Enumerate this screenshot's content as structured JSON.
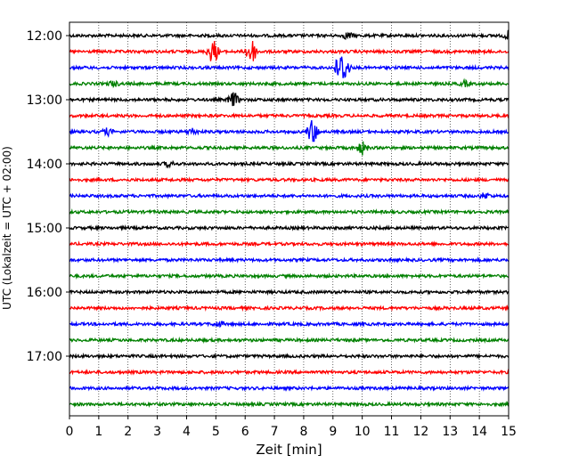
{
  "chart_data": {
    "type": "line",
    "title": "",
    "xlabel": "Zeit  [min]",
    "ylabel": "UTC (Lokalzeit = UTC + 02:00)",
    "xlim": [
      0,
      15
    ],
    "x_ticks": [
      "0",
      "1",
      "2",
      "3",
      "4",
      "5",
      "6",
      "7",
      "8",
      "9",
      "10",
      "11",
      "12",
      "13",
      "14",
      "15"
    ],
    "y_tick_labels": [
      "12:00",
      "13:00",
      "14:00",
      "15:00",
      "16:00",
      "17:00"
    ],
    "grid": "vertical dotted at each minute",
    "row_minutes": 15,
    "trace_colors": [
      "#000000",
      "#ff0000",
      "#0000ff",
      "#008000"
    ],
    "series": [
      {
        "start": "12:00",
        "color": "#000000",
        "events": [
          {
            "x": 9.5,
            "amp": 0.4
          },
          {
            "x": 15.0,
            "amp": 0.5
          }
        ]
      },
      {
        "start": "12:15",
        "color": "#ff0000",
        "events": [
          {
            "x": 4.9,
            "amp": 1.6
          },
          {
            "x": 6.2,
            "amp": 1.8
          }
        ]
      },
      {
        "start": "12:30",
        "color": "#0000ff",
        "events": [
          {
            "x": 9.2,
            "amp": 1.4
          },
          {
            "x": 9.4,
            "amp": 1.5
          }
        ]
      },
      {
        "start": "12:45",
        "color": "#008000",
        "events": [
          {
            "x": 1.5,
            "amp": 0.3
          },
          {
            "x": 13.5,
            "amp": 0.3
          }
        ]
      },
      {
        "start": "13:00",
        "color": "#000000",
        "events": [
          {
            "x": 5.6,
            "amp": 0.9
          }
        ]
      },
      {
        "start": "13:15",
        "color": "#ff0000",
        "events": []
      },
      {
        "start": "13:30",
        "color": "#0000ff",
        "events": [
          {
            "x": 1.3,
            "amp": 0.4
          },
          {
            "x": 4.2,
            "amp": 0.4
          },
          {
            "x": 8.3,
            "amp": 1.6
          }
        ]
      },
      {
        "start": "13:45",
        "color": "#008000",
        "events": [
          {
            "x": 10.0,
            "amp": 0.8
          }
        ]
      },
      {
        "start": "14:00",
        "color": "#000000",
        "events": [
          {
            "x": 3.4,
            "amp": 0.3
          }
        ]
      },
      {
        "start": "14:15",
        "color": "#ff0000",
        "events": []
      },
      {
        "start": "14:30",
        "color": "#0000ff",
        "events": [
          {
            "x": 14.2,
            "amp": 0.35
          }
        ]
      },
      {
        "start": "14:45",
        "color": "#008000",
        "events": []
      },
      {
        "start": "15:00",
        "color": "#000000",
        "events": []
      },
      {
        "start": "15:15",
        "color": "#ff0000",
        "events": []
      },
      {
        "start": "15:30",
        "color": "#0000ff",
        "events": []
      },
      {
        "start": "15:45",
        "color": "#008000",
        "events": []
      },
      {
        "start": "16:00",
        "color": "#000000",
        "events": []
      },
      {
        "start": "16:15",
        "color": "#ff0000",
        "events": []
      },
      {
        "start": "16:30",
        "color": "#0000ff",
        "events": [
          {
            "x": 5.1,
            "amp": 0.3
          }
        ]
      },
      {
        "start": "16:45",
        "color": "#008000",
        "events": []
      },
      {
        "start": "17:00",
        "color": "#000000",
        "events": []
      },
      {
        "start": "17:15",
        "color": "#ff0000",
        "events": []
      },
      {
        "start": "17:30",
        "color": "#0000ff",
        "events": []
      },
      {
        "start": "17:45",
        "color": "#008000",
        "events": []
      }
    ]
  }
}
